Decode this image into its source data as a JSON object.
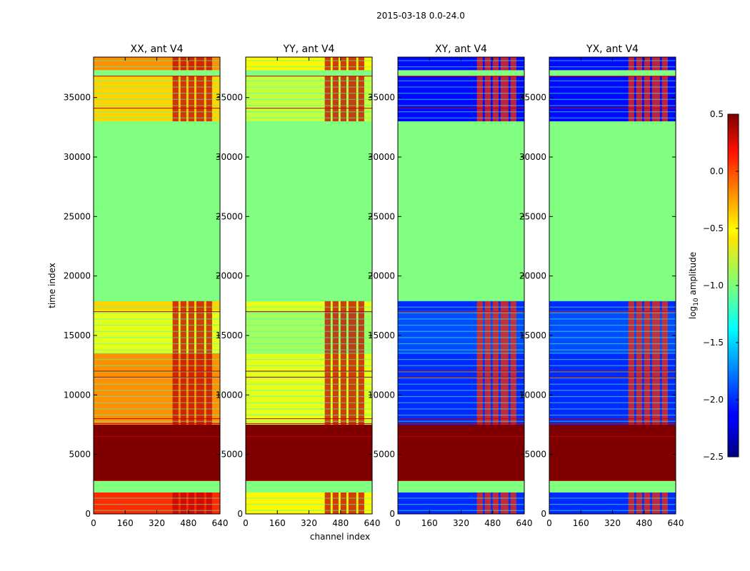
{
  "chart_data": {
    "type": "heatmap",
    "title": "2015-03-18 0.0-24.0",
    "xlabel": "channel index",
    "ylabel": "time index",
    "xlim": [
      0,
      640
    ],
    "ylim": [
      0,
      38400
    ],
    "x_ticks": [
      0,
      160,
      320,
      480,
      640
    ],
    "y_ticks": [
      0,
      5000,
      10000,
      15000,
      20000,
      25000,
      30000,
      35000
    ],
    "colorbar": {
      "label": "log10 amplitude",
      "label_base": "log",
      "label_sub": "10",
      "label_rest": " amplitude",
      "colormap": "jet",
      "range": [
        -2.5,
        0.5
      ],
      "ticks": [
        0.5,
        0.0,
        -0.5,
        -1.0,
        -1.5,
        -2.0,
        -2.5
      ],
      "tick_labels": [
        "0.5",
        "0.0",
        "−0.5",
        "−1.0",
        "−1.5",
        "−2.0",
        "−2.5"
      ]
    },
    "panels": [
      {
        "title": "XX, ant V4",
        "kind": "auto",
        "regions": [
          {
            "t0": 0,
            "t1": 1800,
            "value": 0.0
          },
          {
            "t0": 1800,
            "t1": 2800,
            "value": -1.0
          },
          {
            "t0": 2800,
            "t1": 7500,
            "value": 0.5
          },
          {
            "t0": 7500,
            "t1": 13500,
            "value": -0.3
          },
          {
            "t0": 13500,
            "t1": 17100,
            "value": -0.7
          },
          {
            "t0": 17100,
            "t1": 17900,
            "value": -0.5
          },
          {
            "t0": 17900,
            "t1": 33000,
            "value": -1.0
          },
          {
            "t0": 33000,
            "t1": 36800,
            "value": -0.5
          },
          {
            "t0": 36800,
            "t1": 37300,
            "value": -1.0
          },
          {
            "t0": 37300,
            "t1": 38400,
            "value": -0.3
          }
        ],
        "rfi_channels": [
          [
            400,
            430
          ],
          [
            440,
            470
          ],
          [
            480,
            510
          ],
          [
            520,
            560
          ],
          [
            570,
            600
          ]
        ],
        "rfi_value": 0.3
      },
      {
        "title": "YY, ant V4",
        "kind": "auto",
        "regions": [
          {
            "t0": 0,
            "t1": 1800,
            "value": -0.6
          },
          {
            "t0": 1800,
            "t1": 2800,
            "value": -1.0
          },
          {
            "t0": 2800,
            "t1": 7500,
            "value": 0.5
          },
          {
            "t0": 7500,
            "t1": 13500,
            "value": -0.7
          },
          {
            "t0": 13500,
            "t1": 17100,
            "value": -0.9
          },
          {
            "t0": 17100,
            "t1": 17900,
            "value": -0.7
          },
          {
            "t0": 17900,
            "t1": 33000,
            "value": -1.0
          },
          {
            "t0": 33000,
            "t1": 36800,
            "value": -0.8
          },
          {
            "t0": 36800,
            "t1": 37300,
            "value": -1.0
          },
          {
            "t0": 37300,
            "t1": 38400,
            "value": -0.6
          }
        ],
        "rfi_channels": [
          [
            400,
            430
          ],
          [
            440,
            470
          ],
          [
            480,
            510
          ],
          [
            520,
            560
          ],
          [
            570,
            600
          ]
        ],
        "rfi_value": 0.3
      },
      {
        "title": "XY, ant V4",
        "kind": "cross",
        "regions": [
          {
            "t0": 0,
            "t1": 1800,
            "value": -2.0
          },
          {
            "t0": 1800,
            "t1": 2800,
            "value": -1.0
          },
          {
            "t0": 2800,
            "t1": 7500,
            "value": 0.5
          },
          {
            "t0": 7500,
            "t1": 13500,
            "value": -2.0
          },
          {
            "t0": 13500,
            "t1": 17100,
            "value": -1.9
          },
          {
            "t0": 17100,
            "t1": 17900,
            "value": -2.0
          },
          {
            "t0": 17900,
            "t1": 33000,
            "value": -1.0
          },
          {
            "t0": 33000,
            "t1": 36800,
            "value": -2.1
          },
          {
            "t0": 36800,
            "t1": 37300,
            "value": -1.0
          },
          {
            "t0": 37300,
            "t1": 38400,
            "value": -2.1
          }
        ],
        "rfi_channels": [
          [
            400,
            430
          ],
          [
            440,
            470
          ],
          [
            480,
            510
          ],
          [
            520,
            560
          ],
          [
            570,
            600
          ]
        ],
        "rfi_value": 0.0
      },
      {
        "title": "YX, ant V4",
        "kind": "cross",
        "regions": [
          {
            "t0": 0,
            "t1": 1800,
            "value": -2.0
          },
          {
            "t0": 1800,
            "t1": 2800,
            "value": -1.0
          },
          {
            "t0": 2800,
            "t1": 7500,
            "value": 0.5
          },
          {
            "t0": 7500,
            "t1": 13500,
            "value": -2.0
          },
          {
            "t0": 13500,
            "t1": 17100,
            "value": -1.9
          },
          {
            "t0": 17100,
            "t1": 17900,
            "value": -2.0
          },
          {
            "t0": 17900,
            "t1": 33000,
            "value": -1.0
          },
          {
            "t0": 33000,
            "t1": 36800,
            "value": -2.1
          },
          {
            "t0": 36800,
            "t1": 37300,
            "value": -1.0
          },
          {
            "t0": 37300,
            "t1": 38400,
            "value": -2.1
          }
        ],
        "rfi_channels": [
          [
            400,
            430
          ],
          [
            440,
            470
          ],
          [
            480,
            510
          ],
          [
            520,
            560
          ],
          [
            570,
            600
          ]
        ],
        "rfi_value": 0.0
      }
    ],
    "rfi_time_lines": [
      2800,
      6500,
      7600,
      8000,
      11500,
      12000,
      17000,
      34100,
      36800
    ],
    "rfi_time_line_value": 0.3
  }
}
